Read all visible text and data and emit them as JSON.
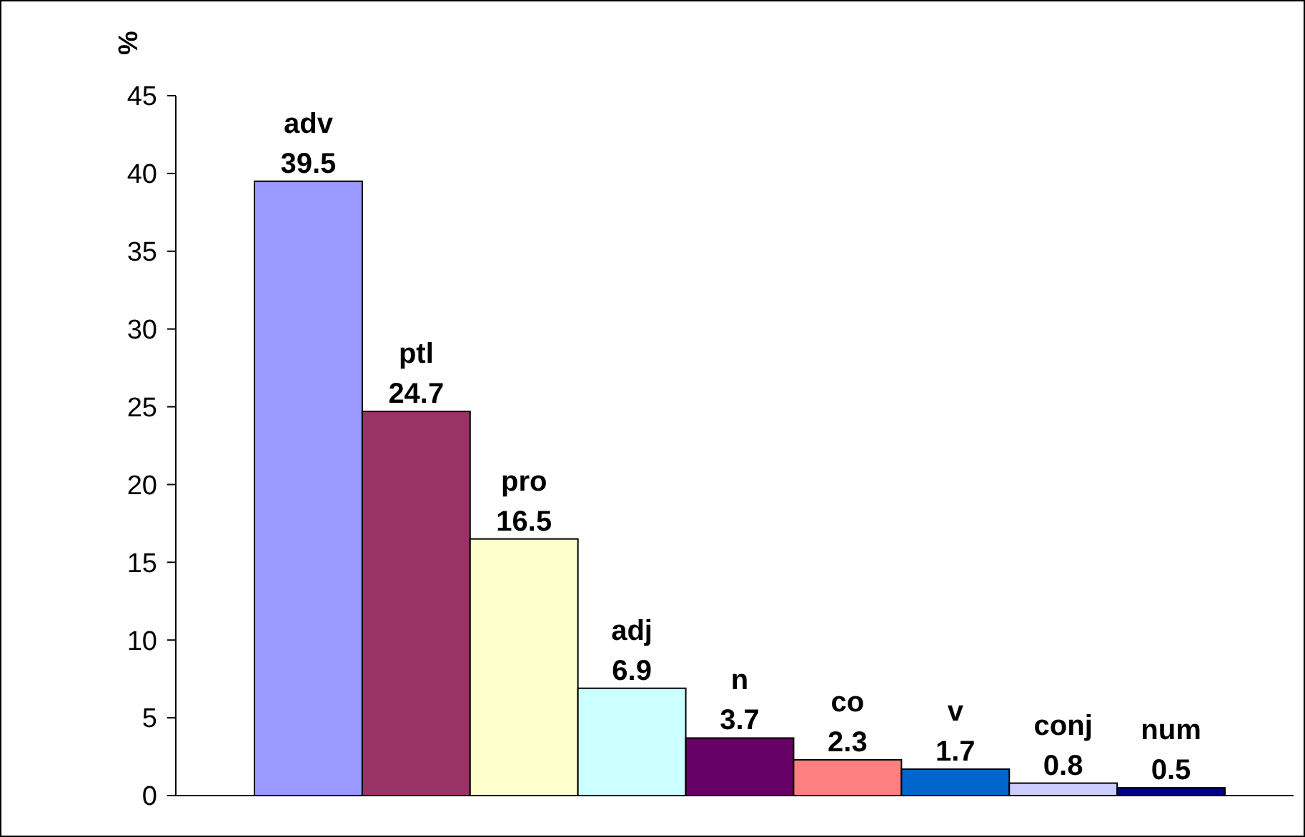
{
  "chart_data": {
    "type": "bar",
    "ylabel": "%",
    "categories": [
      "adv",
      "ptl",
      "pro",
      "adj",
      "n",
      "co",
      "v",
      "conj",
      "num"
    ],
    "values": [
      39.5,
      24.7,
      16.5,
      6.9,
      3.7,
      2.3,
      1.7,
      0.8,
      0.5
    ],
    "colors": [
      "#9999ff",
      "#993366",
      "#ffffcc",
      "#ccffff",
      "#660066",
      "#ff8080",
      "#0066cc",
      "#ccccff",
      "#000080"
    ],
    "ylim": [
      0,
      45
    ],
    "yticks": [
      0,
      5,
      10,
      15,
      20,
      25,
      30,
      35,
      40,
      45
    ],
    "grid": false,
    "data_labels": true
  }
}
